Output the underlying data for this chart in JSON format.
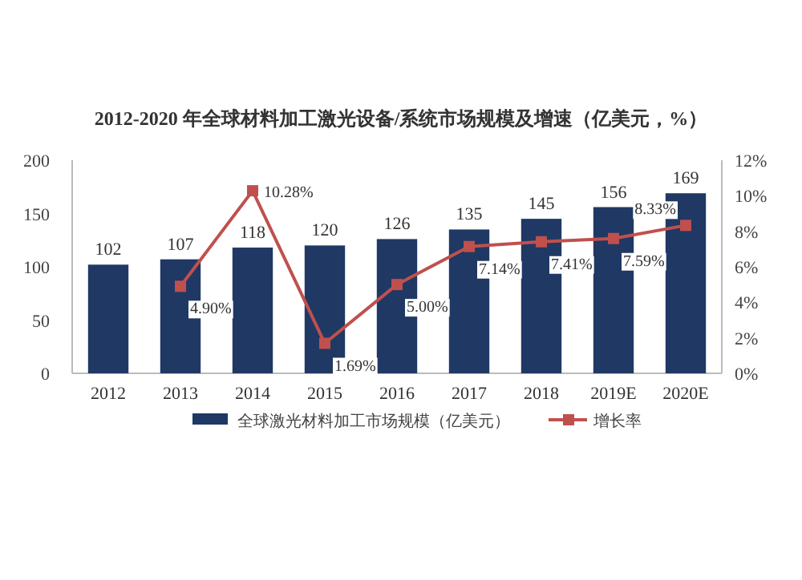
{
  "chart_data": {
    "type": "bar",
    "title": "2012-2020 年全球材料加工激光设备/系统市场规模及增速（亿美元，%）",
    "categories": [
      "2012",
      "2013",
      "2014",
      "2015",
      "2016",
      "2017",
      "2018",
      "2019E",
      "2020E"
    ],
    "series": [
      {
        "name": "全球激光材料加工市场规模（亿美元）",
        "color": "#203864",
        "values": [
          102,
          107,
          118,
          120,
          126,
          135,
          145,
          156,
          169
        ],
        "data_labels": true
      },
      {
        "name": "增长率",
        "type": "line",
        "axis": "y2",
        "color": "#c0504d",
        "marker": "square",
        "values": [
          null,
          4.9,
          10.28,
          1.69,
          5.0,
          7.14,
          7.41,
          7.59,
          8.33
        ],
        "value_labels": [
          null,
          "4.90%",
          "10.28%",
          "1.69%",
          "5.00%",
          "7.14%",
          "7.41%",
          "7.59%",
          "8.33%"
        ]
      }
    ],
    "ylim": [
      0,
      200
    ],
    "yticks": [
      0,
      50,
      100,
      150,
      200
    ],
    "y2lim": [
      0,
      12
    ],
    "y2ticks": [
      {
        "value": 0,
        "label": "0%"
      },
      {
        "value": 2,
        "label": "2%"
      },
      {
        "value": 4,
        "label": "4%"
      },
      {
        "value": 6,
        "label": "6%"
      },
      {
        "value": 8,
        "label": "8%"
      },
      {
        "value": 10,
        "label": "10%"
      },
      {
        "value": 12,
        "label": "12%"
      }
    ],
    "grid": false,
    "legend": "bottom"
  }
}
